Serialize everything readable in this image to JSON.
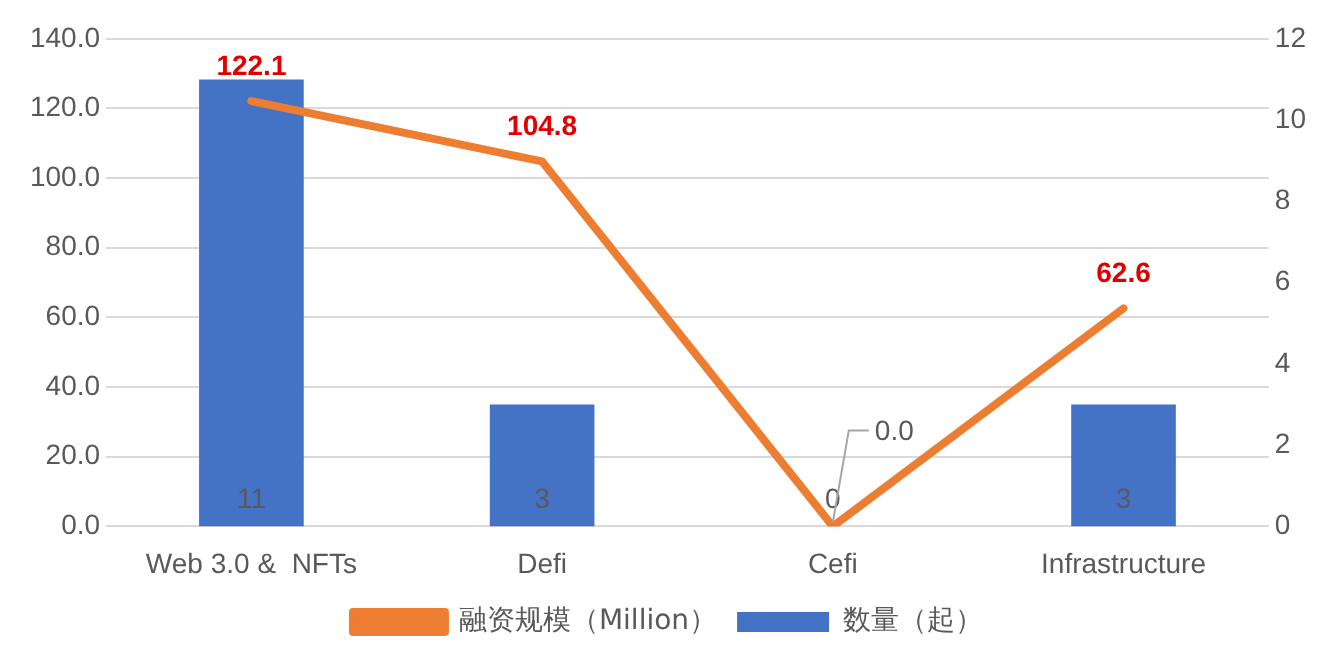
{
  "chart_data": {
    "type": "bar",
    "categories": [
      "Web 3.0 &  NFTs",
      "Defi",
      "Cefi",
      "Infrastructure"
    ],
    "series": [
      {
        "name": "数量（起）",
        "axis": "y2",
        "color": "#4472c4",
        "values": [
          11,
          3,
          0,
          3
        ]
      },
      {
        "name": "融资规模（Million）",
        "type": "line",
        "axis": "y",
        "color": "#ed7d31",
        "values": [
          122.1,
          104.8,
          0.0,
          62.6
        ],
        "value_labels": [
          "122.1",
          "104.8",
          "0.0",
          "62.6"
        ]
      }
    ],
    "ylim": [
      0,
      140
    ],
    "yticks": [
      {
        "value": 0,
        "label": "0.0"
      },
      {
        "value": 20,
        "label": "20.0"
      },
      {
        "value": 40,
        "label": "40.0"
      },
      {
        "value": 60,
        "label": "60.0"
      },
      {
        "value": 80,
        "label": "80.0"
      },
      {
        "value": 100,
        "label": "100.0"
      },
      {
        "value": 120,
        "label": "120.0"
      },
      {
        "value": 140,
        "label": "140.0"
      }
    ],
    "y2lim": [
      0,
      12
    ],
    "y2ticks": [
      0,
      2,
      4,
      6,
      8,
      10,
      12
    ],
    "grid": "y",
    "legend": "bottom",
    "data_labels": true,
    "marker": "none"
  }
}
